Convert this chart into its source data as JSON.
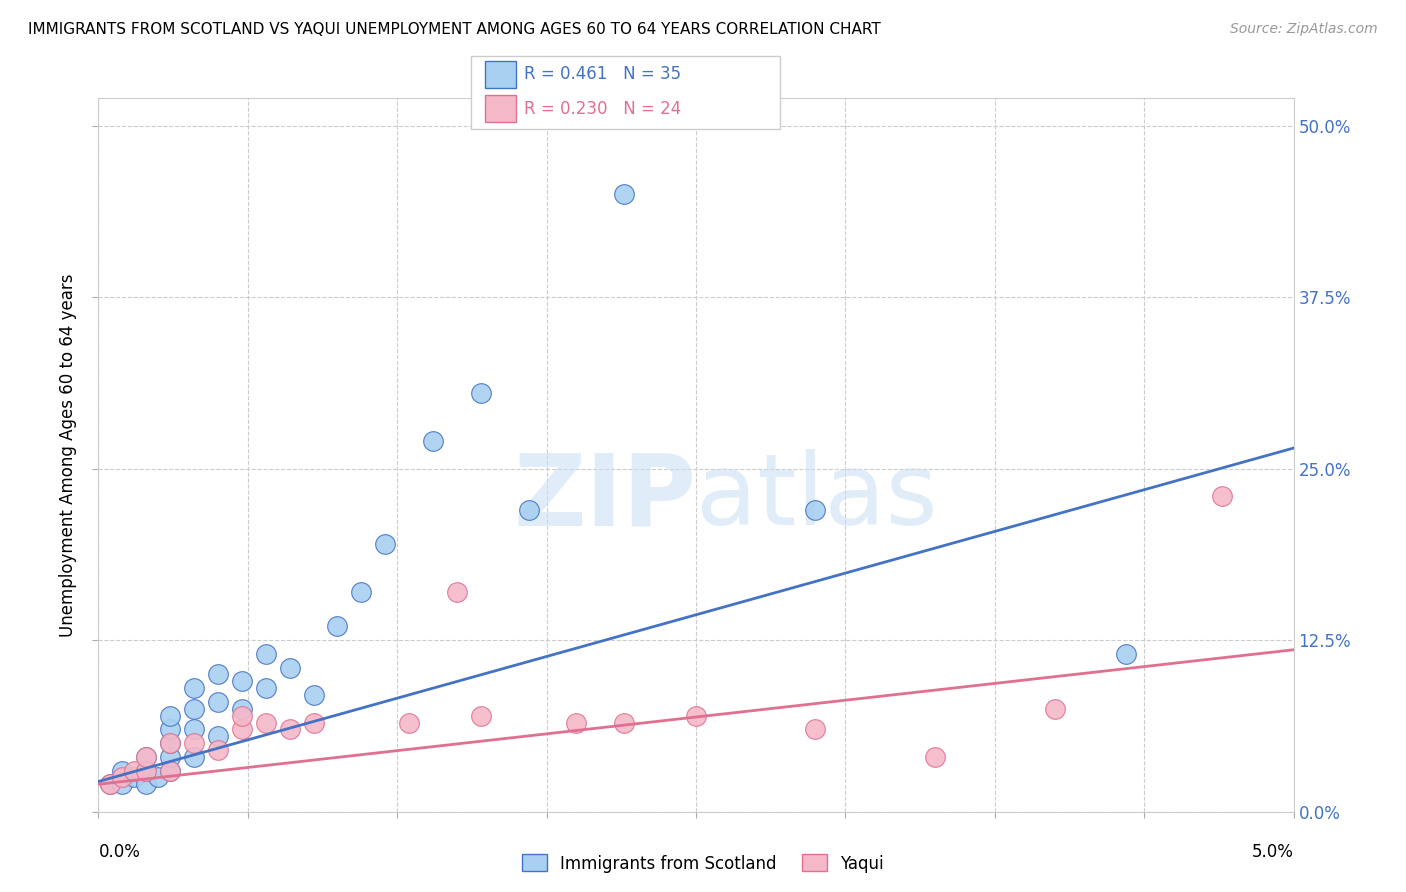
{
  "title": "IMMIGRANTS FROM SCOTLAND VS YAQUI UNEMPLOYMENT AMONG AGES 60 TO 64 YEARS CORRELATION CHART",
  "source": "Source: ZipAtlas.com",
  "ylabel": "Unemployment Among Ages 60 to 64 years",
  "ytick_labels": [
    "0.0%",
    "12.5%",
    "25.0%",
    "37.5%",
    "50.0%"
  ],
  "ytick_values": [
    0.0,
    0.125,
    0.25,
    0.375,
    0.5
  ],
  "xmin": 0.0,
  "xmax": 0.05,
  "ymin": 0.0,
  "ymax": 0.52,
  "legend_label1": "Immigrants from Scotland",
  "legend_label2": "Yaqui",
  "r1": "0.461",
  "n1": "35",
  "r2": "0.230",
  "n2": "24",
  "color_blue": "#A8D0F0",
  "color_pink": "#F5B8C8",
  "line_color_blue": "#4472C4",
  "line_color_pink": "#E07090",
  "scotland_x": [
    0.0005,
    0.001,
    0.001,
    0.0015,
    0.002,
    0.002,
    0.002,
    0.0025,
    0.003,
    0.003,
    0.003,
    0.003,
    0.003,
    0.004,
    0.004,
    0.004,
    0.004,
    0.005,
    0.005,
    0.005,
    0.006,
    0.006,
    0.007,
    0.007,
    0.008,
    0.009,
    0.01,
    0.011,
    0.012,
    0.014,
    0.016,
    0.018,
    0.022,
    0.03,
    0.043
  ],
  "scotland_y": [
    0.02,
    0.02,
    0.03,
    0.025,
    0.02,
    0.03,
    0.04,
    0.025,
    0.03,
    0.04,
    0.05,
    0.06,
    0.07,
    0.04,
    0.06,
    0.075,
    0.09,
    0.055,
    0.08,
    0.1,
    0.075,
    0.095,
    0.09,
    0.115,
    0.105,
    0.085,
    0.135,
    0.16,
    0.195,
    0.27,
    0.305,
    0.22,
    0.45,
    0.22,
    0.115
  ],
  "yaqui_x": [
    0.0005,
    0.001,
    0.0015,
    0.002,
    0.002,
    0.003,
    0.003,
    0.004,
    0.005,
    0.006,
    0.006,
    0.007,
    0.008,
    0.009,
    0.013,
    0.015,
    0.016,
    0.02,
    0.022,
    0.025,
    0.03,
    0.035,
    0.04,
    0.047
  ],
  "yaqui_y": [
    0.02,
    0.025,
    0.03,
    0.03,
    0.04,
    0.03,
    0.05,
    0.05,
    0.045,
    0.06,
    0.07,
    0.065,
    0.06,
    0.065,
    0.065,
    0.16,
    0.07,
    0.065,
    0.065,
    0.07,
    0.06,
    0.04,
    0.075,
    0.23
  ],
  "blue_line_x": [
    0.0,
    0.05
  ],
  "blue_line_y": [
    0.022,
    0.265
  ],
  "pink_line_x": [
    0.0,
    0.05
  ],
  "pink_line_y": [
    0.02,
    0.118
  ]
}
